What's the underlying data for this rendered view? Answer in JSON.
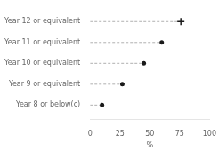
{
  "chart_data": {
    "type": "dot",
    "orientation": "horizontal",
    "xlabel": "%",
    "categories": [
      "Year 8 or below(c)",
      "Year 9 or equivalent",
      "Year 10 or equivalent",
      "Year 11 or equivalent",
      "Year 12 or equivalent"
    ],
    "series": [
      {
        "marker": "circle",
        "color": "#1a1a1a",
        "values": [
          10,
          27,
          45,
          60,
          null
        ]
      },
      {
        "marker": "cross",
        "color": "#1a1a1a",
        "values": [
          null,
          null,
          null,
          null,
          76
        ]
      }
    ],
    "line_style": "dashed",
    "xlim": [
      0,
      100
    ],
    "xticks": [
      0,
      25,
      50,
      75,
      100
    ],
    "grid": false
  }
}
